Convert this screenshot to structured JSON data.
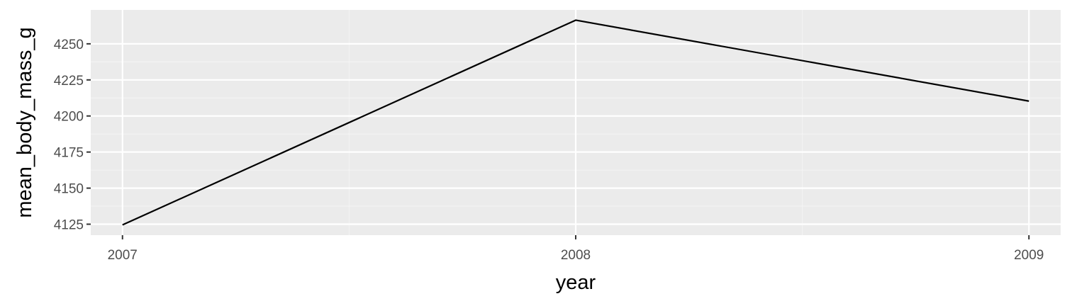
{
  "chart_data": {
    "type": "line",
    "title": "",
    "xlabel": "year",
    "ylabel": "mean_body_mass_g",
    "x": [
      2007,
      2008,
      2009
    ],
    "series": [
      {
        "values": [
          4124.5,
          4266.4,
          4210.3
        ]
      }
    ],
    "xlim": [
      2006.93,
      2009.07
    ],
    "ylim": [
      4117.4,
      4273.5
    ],
    "x_ticks": [
      "2007",
      "2008",
      "2009"
    ],
    "y_ticks": [
      "4125",
      "4150",
      "4175",
      "4200",
      "4225",
      "4250"
    ],
    "grid": true,
    "legend": "none",
    "colors": {
      "panel_background": "#ebebeb",
      "grid_major": "#ffffff",
      "grid_minor": "#f4f4f4",
      "line": "#000000",
      "tick_label": "#4d4d4d",
      "tick_mark": "#333333",
      "axis_title": "#000000"
    }
  }
}
